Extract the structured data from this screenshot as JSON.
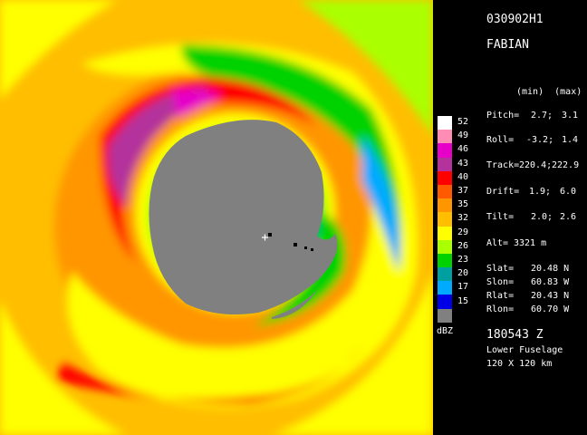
{
  "header": {
    "flight_id": "030902H1",
    "storm_name": "FABIAN"
  },
  "flight_params": {
    "col_header": "(min)  (max)",
    "pitch": {
      "label": "Pitch=",
      "min": "2.7;",
      "max": "3.1"
    },
    "roll": {
      "label": "Roll=",
      "min": "-3.2;",
      "max": "1.4"
    },
    "track": {
      "label": "Track=",
      "min": "220.4;",
      "max": "222.9"
    },
    "drift": {
      "label": "Drift=",
      "min": "1.9;",
      "max": "6.0"
    },
    "tilt": {
      "label": "Tilt=",
      "min": "2.0;",
      "max": "2.6"
    },
    "alt": {
      "label": "Alt=",
      "value": "3321 m"
    }
  },
  "position": {
    "slat": {
      "label": "Slat=",
      "value": "20.48 N"
    },
    "slon": {
      "label": "Slon=",
      "value": "60.83 W"
    },
    "rlat": {
      "label": "Rlat=",
      "value": "20.43 N"
    },
    "rlon": {
      "label": "Rlon=",
      "value": "60.70 W"
    }
  },
  "footer": {
    "time": "180543 Z",
    "radar": "Lower Fuselage",
    "extent": "120 X 120 km"
  },
  "legend": {
    "unit": "dBZ",
    "levels": [
      {
        "value": "52",
        "color": "#ffffff"
      },
      {
        "value": "49",
        "color": "#ff8cb4"
      },
      {
        "value": "46",
        "color": "#e600c8"
      },
      {
        "value": "43",
        "color": "#b4329b"
      },
      {
        "value": "40",
        "color": "#ff0000"
      },
      {
        "value": "37",
        "color": "#ff5a00"
      },
      {
        "value": "35",
        "color": "#ff9600"
      },
      {
        "value": "32",
        "color": "#ffbe00"
      },
      {
        "value": "29",
        "color": "#ffff00"
      },
      {
        "value": "26",
        "color": "#aaff00"
      },
      {
        "value": "23",
        "color": "#00d200"
      },
      {
        "value": "20",
        "color": "#00a0a0"
      },
      {
        "value": "17",
        "color": "#00aaff"
      },
      {
        "value": "15",
        "color": "#0000e6"
      },
      {
        "value": "",
        "color": "#808080"
      }
    ]
  }
}
